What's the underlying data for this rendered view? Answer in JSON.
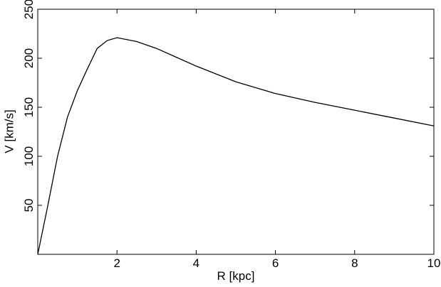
{
  "chart_data": {
    "type": "line",
    "x": [
      0,
      0.25,
      0.5,
      0.75,
      1,
      1.25,
      1.5,
      1.75,
      2,
      2.5,
      3,
      3.5,
      4,
      5,
      6,
      7,
      8,
      9,
      10
    ],
    "values": [
      0,
      49,
      100,
      140,
      167,
      189,
      210,
      218,
      221,
      217,
      210,
      201,
      192,
      176,
      164,
      155,
      147,
      139,
      131
    ],
    "color": "#000000",
    "xlabel": "R [kpc]",
    "ylabel": "V [km/s]",
    "xlim": [
      0,
      10
    ],
    "ylim": [
      0,
      250
    ],
    "xticks": [
      2,
      4,
      6,
      8,
      10
    ],
    "yticks": [
      50,
      100,
      150,
      200,
      250
    ]
  }
}
